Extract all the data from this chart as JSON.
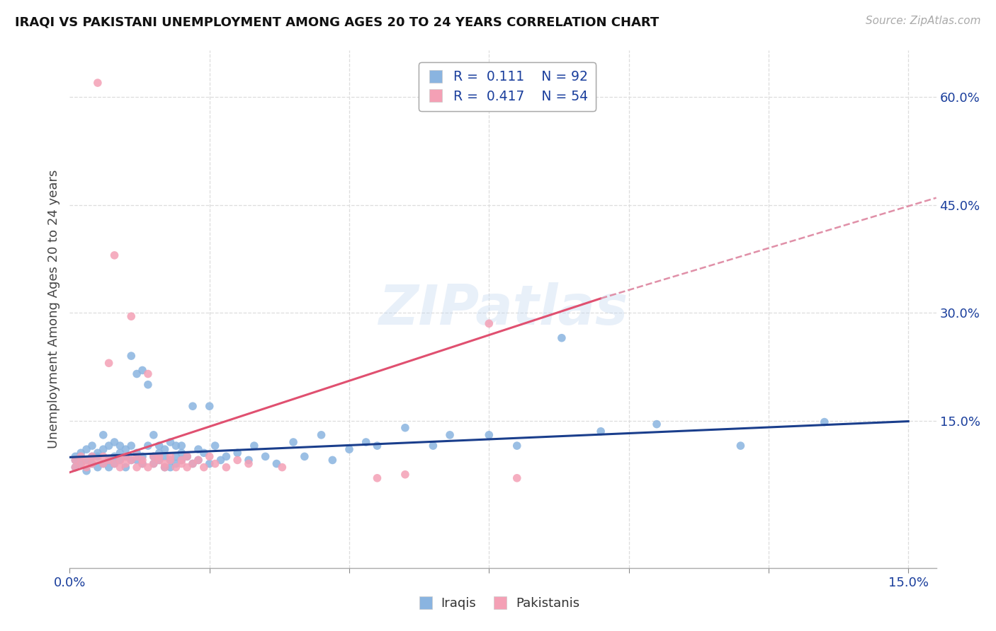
{
  "title": "IRAQI VS PAKISTANI UNEMPLOYMENT AMONG AGES 20 TO 24 YEARS CORRELATION CHART",
  "source": "Source: ZipAtlas.com",
  "ylabel": "Unemployment Among Ages 20 to 24 years",
  "xlim": [
    0.0,
    0.155
  ],
  "ylim": [
    -0.055,
    0.665
  ],
  "xticks": [
    0.0,
    0.025,
    0.05,
    0.075,
    0.1,
    0.125,
    0.15
  ],
  "right_yticks": [
    0.0,
    0.15,
    0.3,
    0.45,
    0.6
  ],
  "right_ytick_labels": [
    "",
    "15.0%",
    "30.0%",
    "45.0%",
    "60.0%"
  ],
  "iraqi_color": "#8ab4e0",
  "pakistani_color": "#f4a0b5",
  "iraqi_line_color": "#1a3e8c",
  "pakistani_line_color": "#e05070",
  "dashed_line_color": "#e090a8",
  "legend_R_iraqi": "0.111",
  "legend_N_iraqi": "92",
  "legend_R_pakistani": "0.417",
  "legend_N_pakistani": "54",
  "watermark": "ZIPatlas",
  "iraqi_line": [
    0.0,
    0.099,
    0.15,
    0.149
  ],
  "pakistani_solid_line": [
    0.0,
    0.078,
    0.095,
    0.32
  ],
  "pakistani_dashed_line": [
    0.095,
    0.32,
    0.155,
    0.46
  ],
  "iraqi_points": [
    [
      0.001,
      0.095
    ],
    [
      0.001,
      0.1
    ],
    [
      0.001,
      0.085
    ],
    [
      0.002,
      0.1
    ],
    [
      0.002,
      0.09
    ],
    [
      0.002,
      0.105
    ],
    [
      0.003,
      0.095
    ],
    [
      0.003,
      0.11
    ],
    [
      0.003,
      0.08
    ],
    [
      0.004,
      0.1
    ],
    [
      0.004,
      0.09
    ],
    [
      0.004,
      0.115
    ],
    [
      0.005,
      0.1
    ],
    [
      0.005,
      0.085
    ],
    [
      0.005,
      0.105
    ],
    [
      0.006,
      0.09
    ],
    [
      0.006,
      0.11
    ],
    [
      0.006,
      0.13
    ],
    [
      0.007,
      0.095
    ],
    [
      0.007,
      0.115
    ],
    [
      0.007,
      0.085
    ],
    [
      0.008,
      0.1
    ],
    [
      0.008,
      0.12
    ],
    [
      0.008,
      0.09
    ],
    [
      0.009,
      0.105
    ],
    [
      0.009,
      0.095
    ],
    [
      0.009,
      0.115
    ],
    [
      0.01,
      0.1
    ],
    [
      0.01,
      0.085
    ],
    [
      0.01,
      0.11
    ],
    [
      0.011,
      0.095
    ],
    [
      0.011,
      0.115
    ],
    [
      0.011,
      0.24
    ],
    [
      0.012,
      0.105
    ],
    [
      0.012,
      0.215
    ],
    [
      0.012,
      0.095
    ],
    [
      0.013,
      0.1
    ],
    [
      0.013,
      0.22
    ],
    [
      0.013,
      0.09
    ],
    [
      0.014,
      0.115
    ],
    [
      0.014,
      0.2
    ],
    [
      0.015,
      0.1
    ],
    [
      0.015,
      0.09
    ],
    [
      0.015,
      0.13
    ],
    [
      0.016,
      0.105
    ],
    [
      0.016,
      0.095
    ],
    [
      0.016,
      0.115
    ],
    [
      0.017,
      0.1
    ],
    [
      0.017,
      0.085
    ],
    [
      0.017,
      0.11
    ],
    [
      0.018,
      0.095
    ],
    [
      0.018,
      0.12
    ],
    [
      0.018,
      0.085
    ],
    [
      0.019,
      0.1
    ],
    [
      0.019,
      0.115
    ],
    [
      0.019,
      0.09
    ],
    [
      0.02,
      0.105
    ],
    [
      0.02,
      0.095
    ],
    [
      0.02,
      0.115
    ],
    [
      0.021,
      0.1
    ],
    [
      0.022,
      0.17
    ],
    [
      0.022,
      0.09
    ],
    [
      0.023,
      0.11
    ],
    [
      0.023,
      0.095
    ],
    [
      0.024,
      0.105
    ],
    [
      0.025,
      0.17
    ],
    [
      0.025,
      0.09
    ],
    [
      0.026,
      0.115
    ],
    [
      0.027,
      0.095
    ],
    [
      0.028,
      0.1
    ],
    [
      0.03,
      0.105
    ],
    [
      0.032,
      0.095
    ],
    [
      0.033,
      0.115
    ],
    [
      0.035,
      0.1
    ],
    [
      0.037,
      0.09
    ],
    [
      0.04,
      0.12
    ],
    [
      0.042,
      0.1
    ],
    [
      0.045,
      0.13
    ],
    [
      0.047,
      0.095
    ],
    [
      0.05,
      0.11
    ],
    [
      0.053,
      0.12
    ],
    [
      0.055,
      0.115
    ],
    [
      0.06,
      0.14
    ],
    [
      0.065,
      0.115
    ],
    [
      0.068,
      0.13
    ],
    [
      0.075,
      0.13
    ],
    [
      0.08,
      0.115
    ],
    [
      0.088,
      0.265
    ],
    [
      0.095,
      0.135
    ],
    [
      0.105,
      0.145
    ],
    [
      0.12,
      0.115
    ],
    [
      0.135,
      0.148
    ]
  ],
  "pakistani_points": [
    [
      0.001,
      0.095
    ],
    [
      0.001,
      0.085
    ],
    [
      0.002,
      0.1
    ],
    [
      0.002,
      0.09
    ],
    [
      0.003,
      0.095
    ],
    [
      0.003,
      0.085
    ],
    [
      0.004,
      0.1
    ],
    [
      0.004,
      0.09
    ],
    [
      0.005,
      0.62
    ],
    [
      0.005,
      0.095
    ],
    [
      0.006,
      0.1
    ],
    [
      0.006,
      0.09
    ],
    [
      0.007,
      0.23
    ],
    [
      0.007,
      0.095
    ],
    [
      0.008,
      0.09
    ],
    [
      0.008,
      0.38
    ],
    [
      0.009,
      0.085
    ],
    [
      0.009,
      0.095
    ],
    [
      0.01,
      0.1
    ],
    [
      0.01,
      0.09
    ],
    [
      0.011,
      0.295
    ],
    [
      0.011,
      0.095
    ],
    [
      0.012,
      0.085
    ],
    [
      0.012,
      0.1
    ],
    [
      0.013,
      0.09
    ],
    [
      0.013,
      0.095
    ],
    [
      0.014,
      0.215
    ],
    [
      0.014,
      0.085
    ],
    [
      0.015,
      0.1
    ],
    [
      0.015,
      0.09
    ],
    [
      0.016,
      0.1
    ],
    [
      0.016,
      0.095
    ],
    [
      0.017,
      0.085
    ],
    [
      0.017,
      0.09
    ],
    [
      0.018,
      0.095
    ],
    [
      0.018,
      0.1
    ],
    [
      0.019,
      0.085
    ],
    [
      0.02,
      0.095
    ],
    [
      0.02,
      0.09
    ],
    [
      0.021,
      0.1
    ],
    [
      0.021,
      0.085
    ],
    [
      0.022,
      0.09
    ],
    [
      0.023,
      0.095
    ],
    [
      0.024,
      0.085
    ],
    [
      0.025,
      0.1
    ],
    [
      0.026,
      0.09
    ],
    [
      0.028,
      0.085
    ],
    [
      0.03,
      0.095
    ],
    [
      0.032,
      0.09
    ],
    [
      0.038,
      0.085
    ],
    [
      0.055,
      0.07
    ],
    [
      0.06,
      0.075
    ],
    [
      0.075,
      0.285
    ],
    [
      0.08,
      0.07
    ]
  ]
}
